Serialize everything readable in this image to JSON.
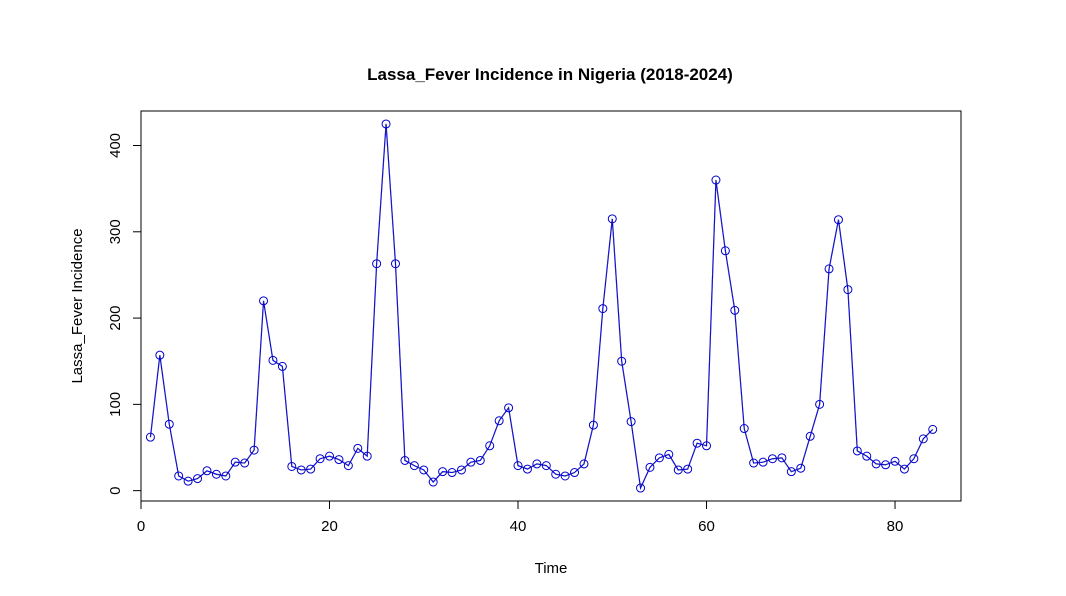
{
  "chart_data": {
    "type": "line",
    "title": "Lassa_Fever Incidence in Nigeria (2018-2024)",
    "xlabel": "Time",
    "ylabel": "Lassa_Fever Incidence",
    "xlim": [
      0,
      87
    ],
    "ylim": [
      -12,
      440
    ],
    "x_ticks": [
      0,
      20,
      40,
      60,
      80
    ],
    "y_ticks": [
      0,
      100,
      200,
      300,
      400
    ],
    "grid": false,
    "legend": "none",
    "colors": {
      "line": "#0000ff",
      "dash": "#444444",
      "points": "#0000cc"
    },
    "series": [
      {
        "x": [
          1,
          2,
          3,
          4,
          5,
          6,
          7,
          8,
          9,
          10,
          11,
          12,
          13,
          14,
          15,
          16,
          17,
          18,
          19,
          20,
          21,
          22,
          23,
          24,
          25,
          26,
          27,
          28,
          29,
          30,
          31,
          32,
          33,
          34,
          35,
          36,
          37,
          38,
          39,
          40,
          41,
          42,
          43,
          44,
          45,
          46,
          47,
          48,
          49,
          50,
          51,
          52,
          53,
          54,
          55,
          56,
          57,
          58,
          59,
          60,
          61,
          62,
          63,
          64,
          65,
          66,
          67,
          68,
          69,
          70,
          71,
          72,
          73,
          74,
          75,
          76,
          77,
          78,
          79,
          80,
          81,
          82,
          83,
          84
        ],
        "values": [
          62,
          157,
          77,
          17,
          11,
          14,
          23,
          19,
          17,
          33,
          32,
          47,
          220,
          151,
          144,
          28,
          24,
          25,
          37,
          40,
          36,
          29,
          49,
          40,
          263,
          425,
          263,
          35,
          29,
          24,
          10,
          22,
          21,
          24,
          33,
          35,
          52,
          81,
          96,
          29,
          25,
          31,
          29,
          19,
          17,
          21,
          31,
          76,
          211,
          315,
          150,
          80,
          3,
          27,
          38,
          42,
          24,
          25,
          55,
          52,
          360,
          278,
          209,
          72,
          32,
          33,
          37,
          38,
          22,
          26,
          63,
          100,
          257,
          314,
          233,
          46,
          40,
          31,
          30,
          34,
          25,
          37,
          60,
          71
        ]
      }
    ]
  }
}
